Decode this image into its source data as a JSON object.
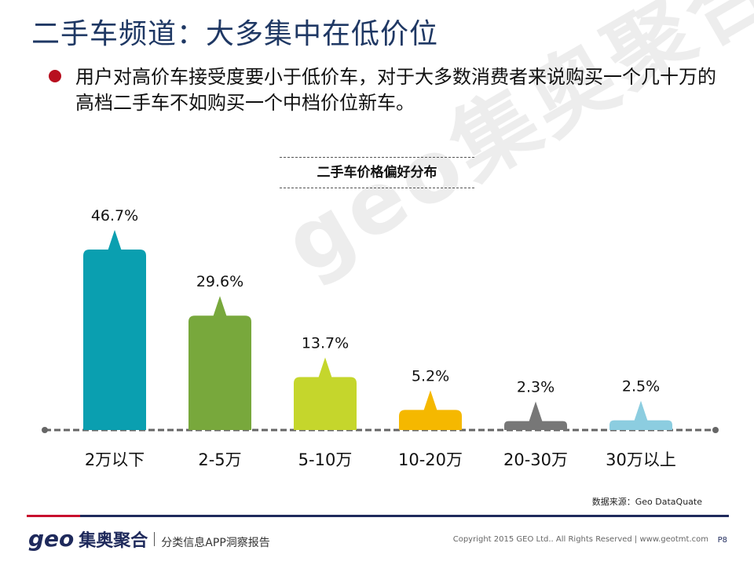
{
  "header": {
    "title": "二手车频道：大多集中在低价位"
  },
  "bullet": {
    "text": "用户对高价车接受度要小于低价车，对于大多数消费者来说购买一个几十万的高档二手车不如购买一个中档价位新车。"
  },
  "watermark": {
    "text": "geo集奥聚合"
  },
  "chart_data": {
    "type": "bar",
    "title": "二手车价格偏好分布",
    "categories": [
      "2万以下",
      "2-5万",
      "5-10万",
      "10-20万",
      "20-30万",
      "30万以上"
    ],
    "values": [
      46.7,
      29.6,
      13.7,
      5.2,
      2.3,
      2.5
    ],
    "value_labels": [
      "46.7%",
      "29.6%",
      "13.7%",
      "5.2%",
      "2.3%",
      "2.5%"
    ],
    "colors": [
      "#0a9fb0",
      "#78a83c",
      "#c5d62c",
      "#f5b800",
      "#777777",
      "#8ccde0"
    ],
    "xlabel": "",
    "ylabel": "",
    "grid": false,
    "legend": "none"
  },
  "source": {
    "text": "数据来源：Geo DataQuate"
  },
  "footer": {
    "logo_latin": "geo",
    "logo_cn": "集奥聚合",
    "subtitle": "分类信息APP洞察报告",
    "copyright": "Copyright 2015 GEO Ltd.. All Rights Reserved  |  www.geotmt.com",
    "page": "P8"
  }
}
